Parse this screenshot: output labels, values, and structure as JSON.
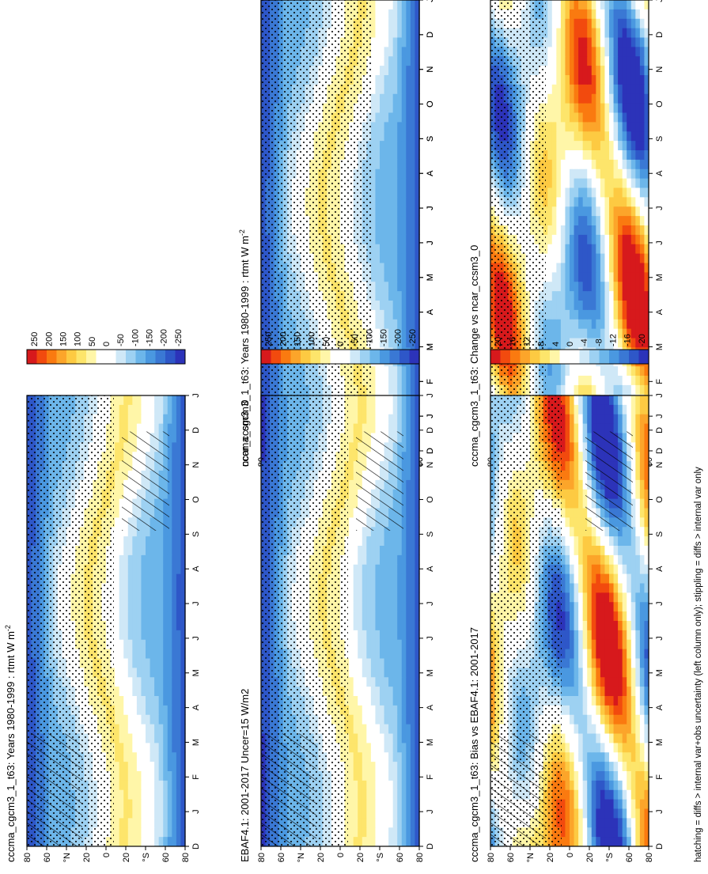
{
  "figure_caption": "hatching = diffs > internal var+obs uncertainty (left column only); stippling = diffs > internal var only",
  "chart_data": [
    {
      "type": "heatmap",
      "id": "model",
      "title": "cccma_cgcm3_1_t63: Years 1980-1999 : rtmt W m",
      "title_superscript": "-2",
      "months": [
        "D",
        "J",
        "F",
        "M",
        "A",
        "M",
        "J",
        "J",
        "A",
        "S",
        "O",
        "N",
        "D",
        "J"
      ],
      "lat_ticks": [
        "80",
        "60",
        "°N",
        "20",
        "0",
        "20",
        "°S",
        "60",
        "80"
      ],
      "colorbar_ticks": [
        "250",
        "200",
        "150",
        "100",
        "50",
        "0",
        "-50",
        "-100",
        "-150",
        "-200",
        "-250"
      ],
      "value_range": [
        -275,
        275
      ],
      "stipple_density": 0.7,
      "hatch": false
    },
    {
      "type": "heatmap",
      "id": "model-left",
      "title": "cccma_cgcm3_1_t63: Years 1980-1999 : rtmt W m",
      "title_superscript": "-2",
      "months": [
        "D",
        "J",
        "F",
        "M",
        "A",
        "M",
        "J",
        "J",
        "A",
        "S",
        "O",
        "N",
        "D",
        "J"
      ],
      "lat_ticks": [
        "80",
        "60",
        "°N",
        "20",
        "0",
        "20",
        "°S",
        "60",
        "80"
      ],
      "colorbar_ticks": [
        "250",
        "200",
        "150",
        "100",
        "50",
        "0",
        "-50",
        "-100",
        "-150",
        "-200",
        "-250"
      ],
      "value_range": [
        -275,
        275
      ],
      "stipple_density": 0.55,
      "hatch": true
    },
    {
      "type": "heatmap",
      "id": "reference",
      "title": "ncar_ccsm3_0",
      "title_superscript": "",
      "months": [
        "D",
        "J",
        "F",
        "M",
        "A",
        "M",
        "J",
        "J",
        "A",
        "S",
        "O",
        "N",
        "D",
        "J"
      ],
      "lat_ticks": [
        "80",
        "60",
        "°N",
        "20",
        "0",
        "20",
        "°S",
        "60",
        "80"
      ],
      "colorbar_ticks": [
        "250",
        "200",
        "150",
        "100",
        "50",
        "0",
        "-50",
        "-100",
        "-150",
        "-200",
        "-250"
      ],
      "value_range": [
        -275,
        275
      ],
      "stipple_density": 0.7,
      "hatch": false
    },
    {
      "type": "heatmap",
      "id": "obs",
      "title": "EBAF4.1: 2001-2017 Uncer=15 W/m2",
      "title_superscript": "",
      "months": [
        "D",
        "J",
        "F",
        "M",
        "A",
        "M",
        "J",
        "J",
        "A",
        "S",
        "O",
        "N",
        "D",
        "J"
      ],
      "lat_ticks": [
        "80",
        "60",
        "°N",
        "20",
        "0",
        "20",
        "°S",
        "60",
        "80"
      ],
      "colorbar_ticks": [
        "250",
        "200",
        "150",
        "100",
        "50",
        "0",
        "-50",
        "-100",
        "-150",
        "-200",
        "-250"
      ],
      "value_range": [
        -275,
        275
      ],
      "stipple_density": 0.55,
      "hatch": true
    },
    {
      "type": "heatmap",
      "id": "change",
      "title": "cccma_cgcm3_1_t63: Change vs ncar_ccsm3_0",
      "title_superscript": "",
      "months": [
        "D",
        "J",
        "F",
        "M",
        "A",
        "M",
        "J",
        "J",
        "A",
        "S",
        "O",
        "N",
        "D",
        "J"
      ],
      "lat_ticks": [
        "80",
        "60",
        "°N",
        "20",
        "0",
        "20",
        "°S",
        "60",
        "80"
      ],
      "colorbar_ticks": [
        "20",
        "16",
        "12",
        "8",
        "4",
        "0",
        "-4",
        "-8",
        "-12",
        "-16",
        "-20"
      ],
      "value_range": [
        -22,
        22
      ],
      "stipple_density": 0.35,
      "hatch": false
    },
    {
      "type": "heatmap",
      "id": "bias",
      "title": "cccma_cgcm3_1_t63: Bias vs EBAF4.1: 2001-2017",
      "title_superscript": "",
      "months": [
        "D",
        "J",
        "F",
        "M",
        "A",
        "M",
        "J",
        "J",
        "A",
        "S",
        "O",
        "N",
        "D",
        "J"
      ],
      "lat_ticks": [
        "80",
        "60",
        "°N",
        "20",
        "0",
        "20",
        "°S",
        "60",
        "80"
      ],
      "colorbar_ticks": [
        "20",
        "16",
        "12",
        "8",
        "4",
        "0",
        "-4",
        "-8",
        "-12",
        "-16",
        "-20"
      ],
      "value_range": [
        -22,
        22
      ],
      "stipple_density": 0.45,
      "hatch": true
    }
  ]
}
